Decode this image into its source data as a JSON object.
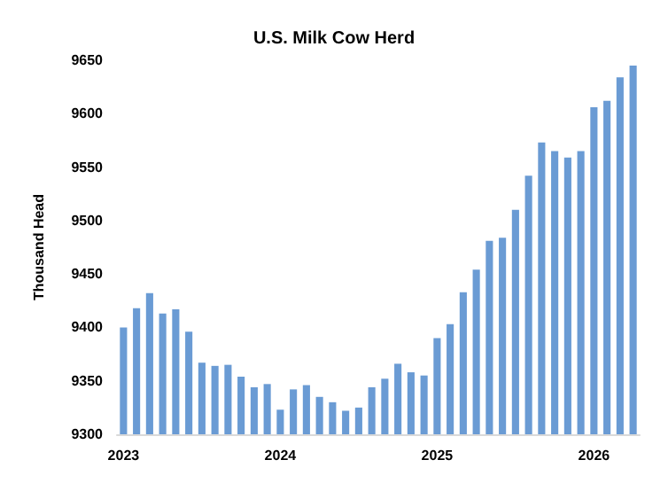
{
  "chart_data": {
    "type": "bar",
    "title": "U.S. Milk Cow Herd",
    "ylabel": "Thousand Head",
    "categories": [
      "2023",
      null,
      null,
      null,
      null,
      null,
      null,
      null,
      null,
      null,
      null,
      null,
      "2024",
      null,
      null,
      null,
      null,
      null,
      null,
      null,
      null,
      null,
      null,
      null,
      "2025",
      null,
      null,
      null,
      null,
      null,
      null,
      null,
      null,
      null,
      null,
      null,
      "2026",
      null,
      null,
      null
    ],
    "values": [
      9400,
      9418,
      9432,
      9413,
      9417,
      9396,
      9367,
      9364,
      9365,
      9354,
      9344,
      9347,
      9323,
      9342,
      9346,
      9335,
      9330,
      9322,
      9325,
      9344,
      9352,
      9366,
      9358,
      9355,
      9390,
      9403,
      9433,
      9454,
      9481,
      9484,
      9510,
      9542,
      9573,
      9565,
      9559,
      9565,
      9606,
      9612,
      9634,
      9645
    ],
    "color": "#6a9bd4",
    "ylim": [
      9300,
      9650
    ],
    "yticks": [
      9300,
      9350,
      9400,
      9450,
      9500,
      9550,
      9600,
      9650
    ],
    "grid": false
  }
}
